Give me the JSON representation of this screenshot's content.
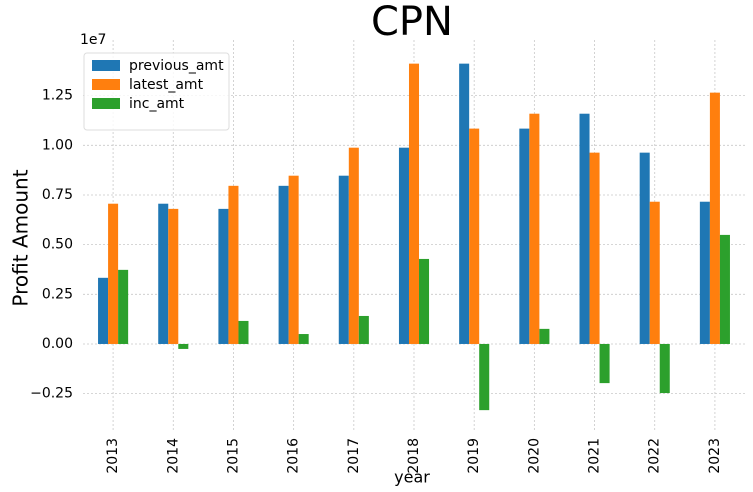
{
  "chart_data": {
    "type": "bar",
    "title": "CPN",
    "xlabel": "year",
    "ylabel": "Profit Amount",
    "y_offset_label": "1e7",
    "categories": [
      "2013",
      "2014",
      "2015",
      "2016",
      "2017",
      "2018",
      "2019",
      "2020",
      "2021",
      "2022",
      "2023"
    ],
    "series": [
      {
        "name": "previous_amt",
        "color": "#1f77b4",
        "values": [
          0.333,
          0.706,
          0.68,
          0.796,
          0.847,
          0.988,
          1.411,
          1.084,
          1.159,
          0.963,
          0.716
        ]
      },
      {
        "name": "latest_amt",
        "color": "#ff7f0e",
        "values": [
          0.706,
          0.68,
          0.796,
          0.847,
          0.988,
          1.411,
          1.084,
          1.159,
          0.963,
          0.716,
          1.265
        ]
      },
      {
        "name": "inc_amt",
        "color": "#2ca02c",
        "values": [
          0.373,
          -0.025,
          0.116,
          0.05,
          0.141,
          0.428,
          -0.333,
          0.076,
          -0.197,
          -0.247,
          0.549
        ]
      }
    ],
    "ylim": [
      -0.433,
      1.53
    ],
    "yticks": [
      {
        "value": -0.25,
        "label": "−0.25"
      },
      {
        "value": 0,
        "label": "0.00"
      },
      0.25,
      {
        "value": 0.5,
        "label": "0.50"
      },
      0.75,
      {
        "value": 1,
        "label": "1.00"
      },
      1.25
    ],
    "grid": true,
    "legend": "upper left"
  }
}
